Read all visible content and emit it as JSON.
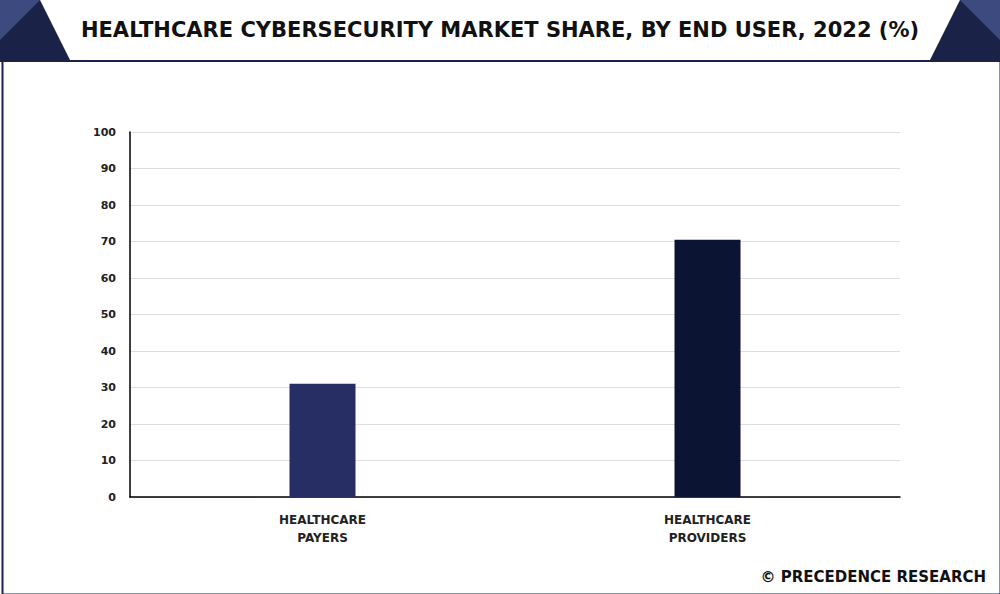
{
  "chart_data": {
    "type": "bar",
    "title": "HEALTHCARE CYBERSECURITY MARKET SHARE, BY END USER, 2022 (%)",
    "categories": [
      "HEALTHCARE PAYERS",
      "HEALTHCARE PROVIDERS"
    ],
    "values": [
      31,
      70.5
    ],
    "colors": [
      "#262e63",
      "#0b1433"
    ],
    "ylim": [
      0,
      100
    ],
    "yticks": [
      0,
      10,
      20,
      30,
      40,
      50,
      60,
      70,
      80,
      90,
      100
    ],
    "grid": true,
    "annotations": [
      "© PRECEDENCE RESEARCH"
    ]
  }
}
